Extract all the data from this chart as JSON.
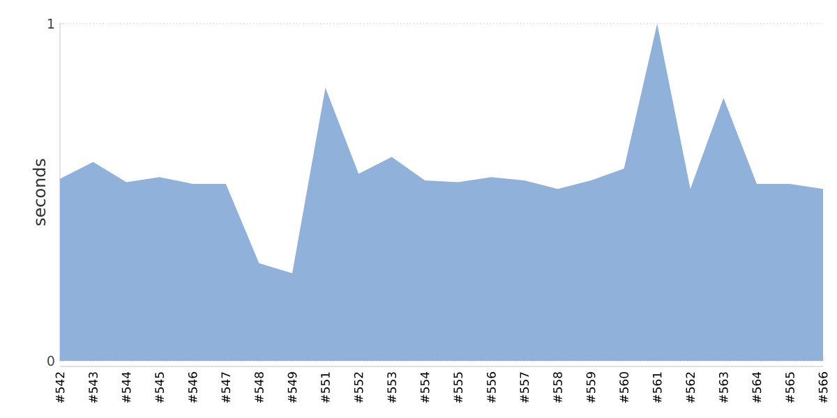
{
  "chart_data": {
    "type": "area",
    "ylabel": "seconds",
    "categories": [
      "#542",
      "#543",
      "#544",
      "#545",
      "#546",
      "#547",
      "#548",
      "#549",
      "#551",
      "#552",
      "#553",
      "#554",
      "#555",
      "#556",
      "#557",
      "#558",
      "#559",
      "#560",
      "#561",
      "#562",
      "#563",
      "#564",
      "#565",
      "#566"
    ],
    "values": [
      0.54,
      0.59,
      0.53,
      0.545,
      0.525,
      0.525,
      0.29,
      0.26,
      0.81,
      0.555,
      0.605,
      0.535,
      0.53,
      0.545,
      0.535,
      0.51,
      0.535,
      0.57,
      1.0,
      0.51,
      0.78,
      0.525,
      0.525,
      0.51
    ],
    "color": "#8fb1da",
    "ylim": [
      0,
      1
    ],
    "yticks": [
      0,
      1
    ],
    "grid": "y"
  }
}
